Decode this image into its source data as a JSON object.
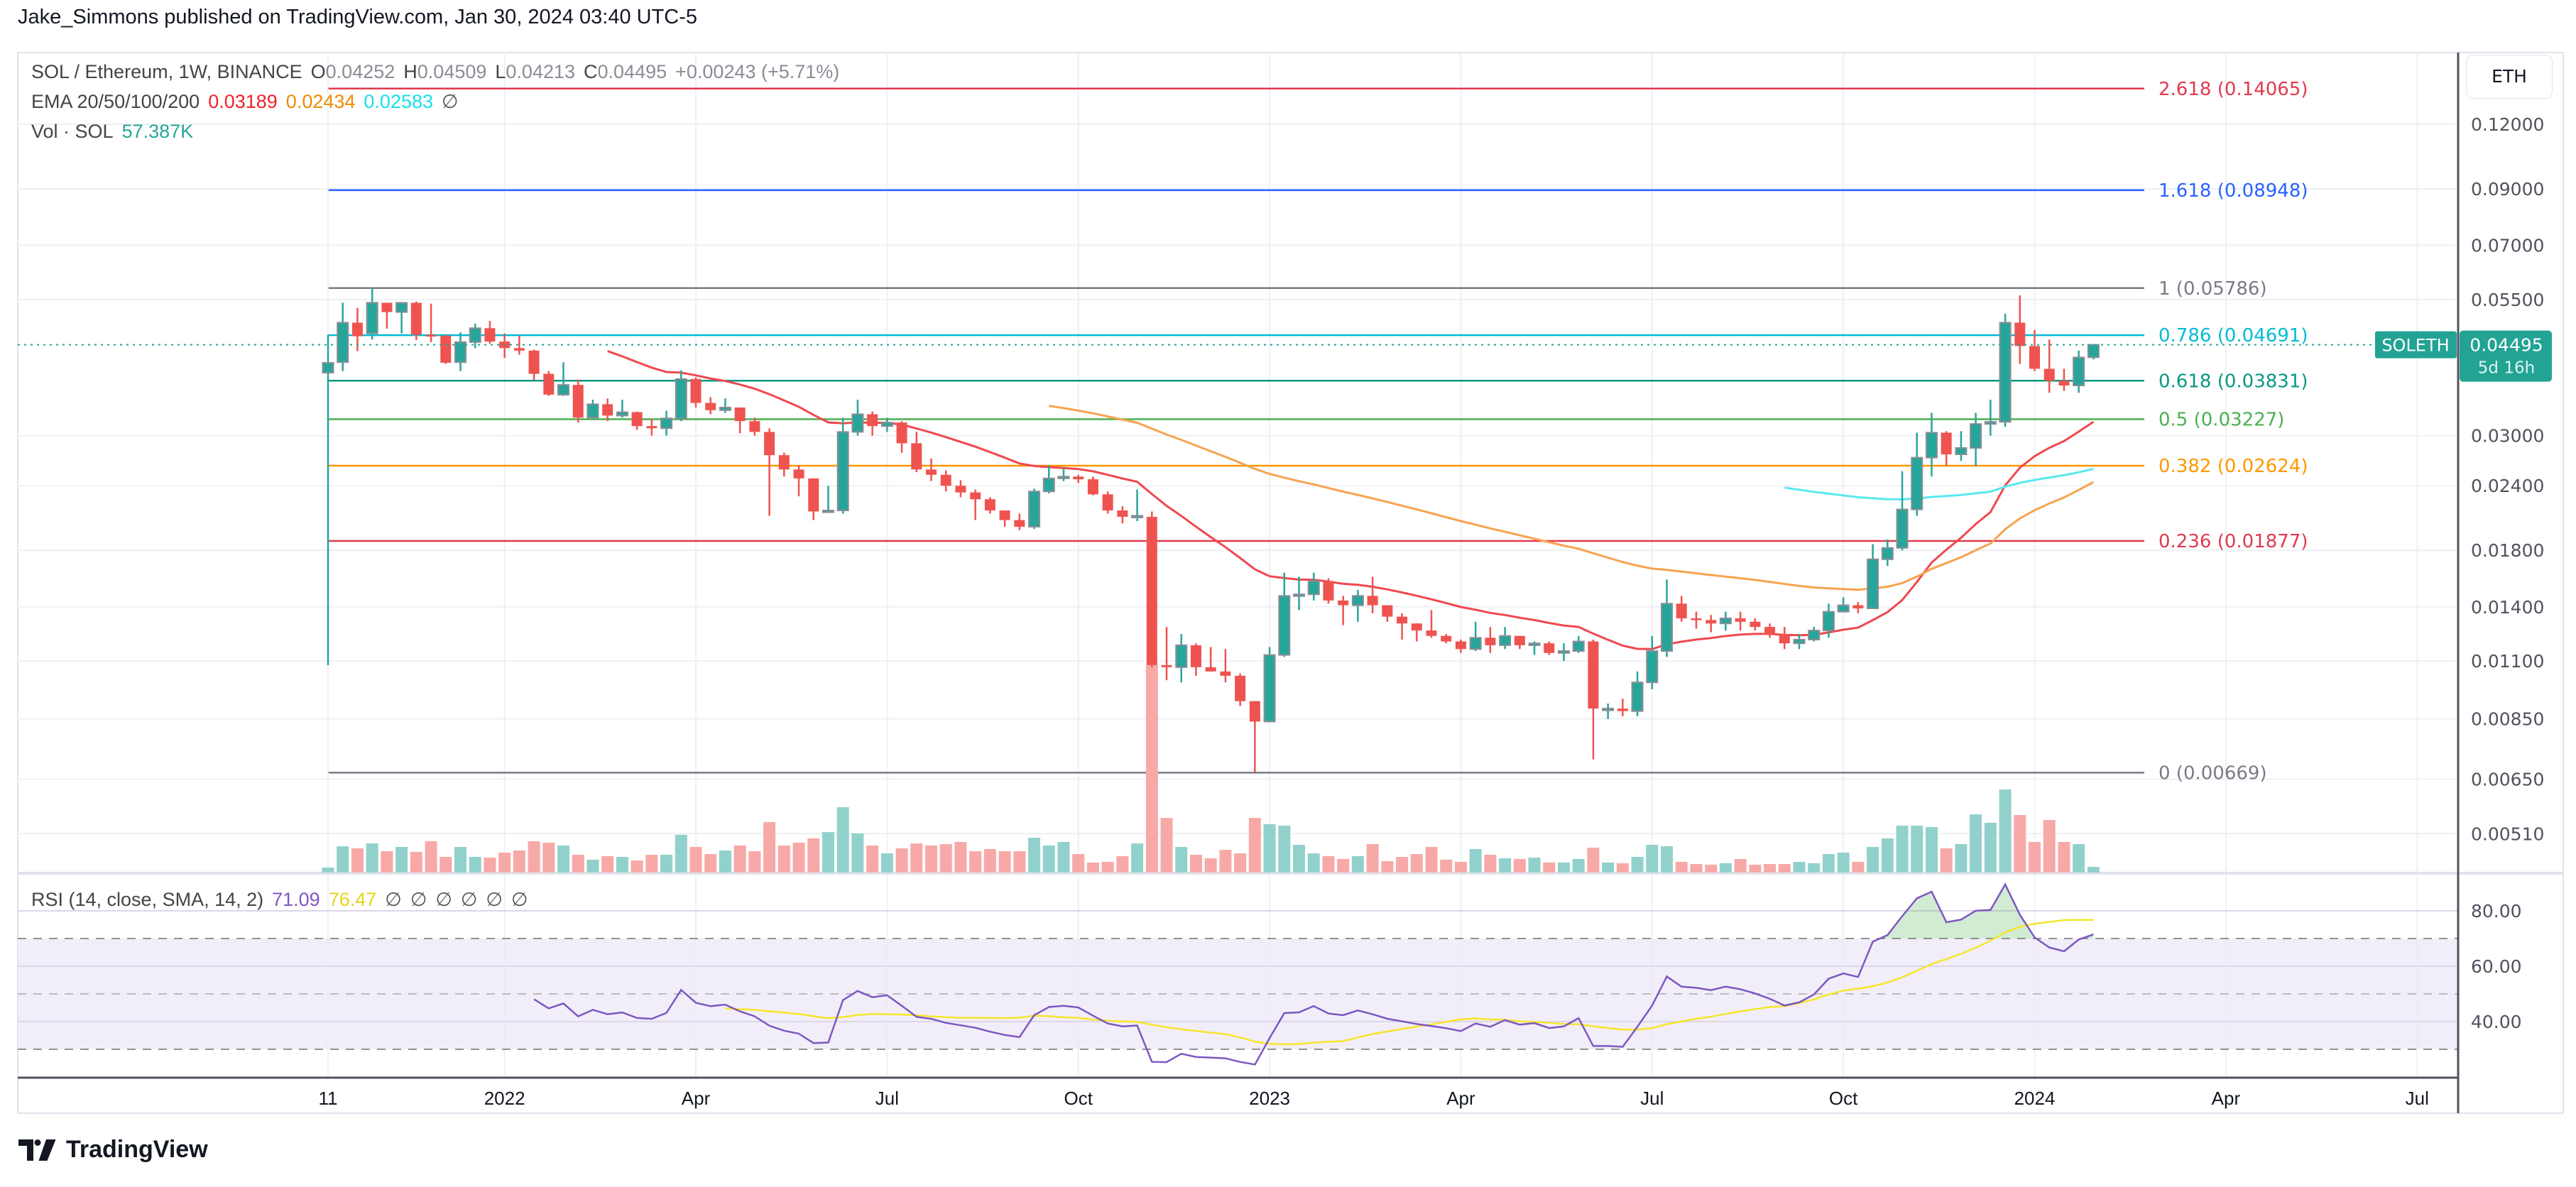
{
  "publisher_line": "Jake_Simmons published on TradingView.com, Jan 30, 2024 03:40 UTC-5",
  "legend": {
    "symbol": "SOL / Ethereum, 1W, BINANCE",
    "o_label": "O",
    "o_value": "0.04252",
    "h_label": "H",
    "h_value": "0.04509",
    "l_label": "L",
    "l_value": "0.04213",
    "c_label": "C",
    "c_value": "0.04495",
    "change": "+0.00243 (+5.71%)",
    "ema_label": "EMA 20/50/100/200",
    "ema20": "0.03189",
    "ema50": "0.02434",
    "ema100": "0.02583",
    "ema200": "∅",
    "vol_label": "Vol · SOL",
    "vol_value": "57.387K",
    "rsi_label": "RSI (14, close, SMA, 14, 2)",
    "rsi_value": "71.09",
    "rsi_sma_value": "76.47",
    "rsi_empty": [
      "∅",
      "∅",
      "∅",
      "∅",
      "∅",
      "∅"
    ]
  },
  "colors": {
    "up": "#26a69a",
    "down": "#ef5350",
    "vol_up": "#92d1cb",
    "vol_down": "#f7a9a7",
    "ema20": "#f0484f",
    "ema50": "#f7a350",
    "ema100": "#5ae8f0",
    "rsi": "#7e57c2",
    "rsi_sma": "#f5e62c",
    "rsi_band": "#ede7f6",
    "grid": "#eef0f4",
    "last_price": "#22a394"
  },
  "price_axis": {
    "currency_button": "ETH",
    "scale": "log",
    "ticks": [
      {
        "v": 0.12,
        "label": "0.12000"
      },
      {
        "v": 0.09,
        "label": "0.09000"
      },
      {
        "v": 0.07,
        "label": "0.07000"
      },
      {
        "v": 0.055,
        "label": "0.05500"
      },
      {
        "v": 0.03,
        "label": "0.03000"
      },
      {
        "v": 0.024,
        "label": "0.02400"
      },
      {
        "v": 0.018,
        "label": "0.01800"
      },
      {
        "v": 0.014,
        "label": "0.01400"
      },
      {
        "v": 0.011,
        "label": "0.01100"
      },
      {
        "v": 0.0085,
        "label": "0.00850"
      },
      {
        "v": 0.0065,
        "label": "0.00650"
      },
      {
        "v": 0.0051,
        "label": "0.00510"
      }
    ],
    "last_price": {
      "symbol": "SOLETH",
      "value": "0.04495",
      "countdown": "5d 16h"
    }
  },
  "rsi_axis": {
    "ticks": [
      {
        "v": 80,
        "label": "80.00"
      },
      {
        "v": 60,
        "label": "60.00"
      },
      {
        "v": 40,
        "label": "40.00"
      }
    ],
    "levels": [
      70,
      50,
      30
    ]
  },
  "time_axis": [
    {
      "label": "11",
      "date": "2021-10-11"
    },
    {
      "label": "2022",
      "date": "2022-01-03"
    },
    {
      "label": "Apr",
      "date": "2022-04-04"
    },
    {
      "label": "Jul",
      "date": "2022-07-04"
    },
    {
      "label": "Oct",
      "date": "2022-10-03"
    },
    {
      "label": "2023",
      "date": "2023-01-02"
    },
    {
      "label": "Apr",
      "date": "2023-04-03"
    },
    {
      "label": "Jul",
      "date": "2023-07-03"
    },
    {
      "label": "Oct",
      "date": "2023-10-02"
    },
    {
      "label": "2024",
      "date": "2024-01-01"
    },
    {
      "label": "Apr",
      "date": "2024-04-01"
    },
    {
      "label": "Jul",
      "date": "2024-07-01"
    }
  ],
  "fib_levels": [
    {
      "level": "2.618",
      "price": 0.14065,
      "label": "2.618 (0.14065)",
      "color": "#e03a4e"
    },
    {
      "level": "1.618",
      "price": 0.08948,
      "label": "1.618 (0.08948)",
      "color": "#2962ff"
    },
    {
      "level": "1",
      "price": 0.05786,
      "label": "1 (0.05786)",
      "color": "#787b86"
    },
    {
      "level": "0.786",
      "price": 0.04691,
      "label": "0.786 (0.04691)",
      "color": "#00bcd4"
    },
    {
      "level": "0.618",
      "price": 0.03831,
      "label": "0.618 (0.03831)",
      "color": "#089981"
    },
    {
      "level": "0.5",
      "price": 0.03227,
      "label": "0.5 (0.03227)",
      "color": "#4caf50"
    },
    {
      "level": "0.382",
      "price": 0.02624,
      "label": "0.382 (0.02624)",
      "color": "#ff9800"
    },
    {
      "level": "0.236",
      "price": 0.01877,
      "label": "0.236 (0.01877)",
      "color": "#e03a4e"
    },
    {
      "level": "0",
      "price": 0.00669,
      "label": "0 (0.00669)",
      "color": "#787b86"
    }
  ],
  "fib_range": {
    "from": "2021-10-18",
    "to": "2024-07-15"
  },
  "chart_data": {
    "type": "candlestick",
    "symbol": "SOLETH",
    "interval": "1W",
    "fields": [
      "date",
      "open",
      "high",
      "low",
      "close",
      "volume_k"
    ],
    "candles": [
      [
        "2021-10-11",
        0.0397,
        0.047,
        0.0108,
        0.0415,
        50
      ],
      [
        "2021-10-18",
        0.0416,
        0.0542,
        0.04,
        0.0496,
        266
      ],
      [
        "2021-10-25",
        0.0496,
        0.053,
        0.0437,
        0.0467,
        245
      ],
      [
        "2021-11-01",
        0.0473,
        0.058,
        0.046,
        0.0542,
        295
      ],
      [
        "2021-11-08",
        0.0542,
        0.0542,
        0.0483,
        0.052,
        216
      ],
      [
        "2021-11-15",
        0.052,
        0.0542,
        0.0473,
        0.0542,
        259
      ],
      [
        "2021-11-22",
        0.0542,
        0.0545,
        0.0459,
        0.047,
        209
      ],
      [
        "2021-11-29",
        0.047,
        0.054,
        0.0455,
        0.0468,
        317
      ],
      [
        "2021-12-06",
        0.0468,
        0.047,
        0.0413,
        0.0415,
        158
      ],
      [
        "2021-12-13",
        0.0416,
        0.0475,
        0.04,
        0.0455,
        259
      ],
      [
        "2021-12-20",
        0.0455,
        0.0494,
        0.0443,
        0.0484,
        158
      ],
      [
        "2021-12-27",
        0.0484,
        0.05,
        0.0452,
        0.0456,
        151
      ],
      [
        "2022-01-03",
        0.0456,
        0.0473,
        0.0424,
        0.0443,
        202
      ],
      [
        "2022-01-10",
        0.0443,
        0.0468,
        0.043,
        0.0438,
        223
      ],
      [
        "2022-01-17",
        0.0438,
        0.044,
        0.0384,
        0.0395,
        317
      ],
      [
        "2022-01-24",
        0.0395,
        0.04,
        0.0358,
        0.036,
        302
      ],
      [
        "2022-01-31",
        0.036,
        0.0416,
        0.0358,
        0.0376,
        274
      ],
      [
        "2022-02-07",
        0.0376,
        0.0385,
        0.0318,
        0.0325,
        180
      ],
      [
        "2022-02-14",
        0.0325,
        0.0352,
        0.0322,
        0.0345,
        130
      ],
      [
        "2022-02-21",
        0.0345,
        0.0354,
        0.032,
        0.0328,
        166
      ],
      [
        "2022-02-28",
        0.0328,
        0.0352,
        0.0325,
        0.0333,
        158
      ],
      [
        "2022-03-07",
        0.0333,
        0.0334,
        0.0308,
        0.0313,
        122
      ],
      [
        "2022-03-14",
        0.0313,
        0.0323,
        0.03,
        0.031,
        180
      ],
      [
        "2022-03-21",
        0.031,
        0.0335,
        0.03,
        0.0324,
        180
      ],
      [
        "2022-03-28",
        0.0324,
        0.0401,
        0.032,
        0.0386,
        382
      ],
      [
        "2022-04-04",
        0.0386,
        0.0389,
        0.034,
        0.0347,
        259
      ],
      [
        "2022-04-11",
        0.0347,
        0.0356,
        0.033,
        0.0336,
        187
      ],
      [
        "2022-04-18",
        0.0336,
        0.0354,
        0.0332,
        0.034,
        223
      ],
      [
        "2022-04-25",
        0.034,
        0.034,
        0.0303,
        0.032,
        274
      ],
      [
        "2022-05-02",
        0.032,
        0.0325,
        0.03,
        0.0305,
        216
      ],
      [
        "2022-05-09",
        0.0305,
        0.031,
        0.021,
        0.0275,
        511
      ],
      [
        "2022-05-16",
        0.0275,
        0.0278,
        0.025,
        0.0258,
        274
      ],
      [
        "2022-05-23",
        0.0258,
        0.0263,
        0.0229,
        0.0248,
        302
      ],
      [
        "2022-05-30",
        0.0248,
        0.0248,
        0.0206,
        0.0214,
        346
      ],
      [
        "2022-06-06",
        0.0214,
        0.024,
        0.0213,
        0.0215,
        410
      ],
      [
        "2022-06-13",
        0.0215,
        0.0325,
        0.0212,
        0.0305,
        662
      ],
      [
        "2022-06-20",
        0.0305,
        0.0352,
        0.03,
        0.033,
        396
      ],
      [
        "2022-06-27",
        0.033,
        0.0334,
        0.03,
        0.0313,
        274
      ],
      [
        "2022-07-04",
        0.0313,
        0.0325,
        0.0305,
        0.0318,
        194
      ],
      [
        "2022-07-11",
        0.0318,
        0.032,
        0.0278,
        0.029,
        245
      ],
      [
        "2022-07-18",
        0.029,
        0.0305,
        0.0255,
        0.0258,
        295
      ],
      [
        "2022-07-25",
        0.0258,
        0.0271,
        0.0245,
        0.0252,
        274
      ],
      [
        "2022-08-01",
        0.0252,
        0.0257,
        0.0234,
        0.024,
        288
      ],
      [
        "2022-08-08",
        0.024,
        0.0246,
        0.0228,
        0.0233,
        310
      ],
      [
        "2022-08-15",
        0.0233,
        0.0236,
        0.0206,
        0.0226,
        216
      ],
      [
        "2022-08-22",
        0.0226,
        0.0228,
        0.0212,
        0.0215,
        238
      ],
      [
        "2022-08-29",
        0.0215,
        0.0215,
        0.02,
        0.0206,
        216
      ],
      [
        "2022-09-05",
        0.0206,
        0.0212,
        0.0197,
        0.02,
        216
      ],
      [
        "2022-09-12",
        0.02,
        0.0237,
        0.0198,
        0.0234,
        353
      ],
      [
        "2022-09-19",
        0.0234,
        0.0263,
        0.0232,
        0.0248,
        274
      ],
      [
        "2022-09-26",
        0.0248,
        0.026,
        0.0245,
        0.025,
        310
      ],
      [
        "2022-10-03",
        0.025,
        0.0252,
        0.0243,
        0.0247,
        187
      ],
      [
        "2022-10-10",
        0.0247,
        0.025,
        0.023,
        0.0231,
        101
      ],
      [
        "2022-10-17",
        0.0231,
        0.0234,
        0.0212,
        0.0215,
        108
      ],
      [
        "2022-10-24",
        0.0215,
        0.0219,
        0.0203,
        0.0209,
        166
      ],
      [
        "2022-10-31",
        0.0209,
        0.0236,
        0.0205,
        0.021,
        295
      ],
      [
        "2022-11-07",
        0.0209,
        0.0214,
        0.0107,
        0.0108,
        2102
      ],
      [
        "2022-11-14",
        0.0108,
        0.0128,
        0.0101,
        0.0107,
        554
      ],
      [
        "2022-11-21",
        0.0107,
        0.0124,
        0.01,
        0.0118,
        259
      ],
      [
        "2022-11-28",
        0.0118,
        0.0119,
        0.0103,
        0.0107,
        180
      ],
      [
        "2022-12-05",
        0.0107,
        0.0117,
        0.0105,
        0.0105,
        144
      ],
      [
        "2022-12-12",
        0.0105,
        0.0116,
        0.01,
        0.0103,
        230
      ],
      [
        "2022-12-19",
        0.0103,
        0.0104,
        0.009,
        0.0092,
        194
      ],
      [
        "2022-12-26",
        0.0092,
        0.0092,
        0.0067,
        0.0084,
        554
      ],
      [
        "2023-01-02",
        0.0084,
        0.0117,
        0.0084,
        0.0113,
        490
      ],
      [
        "2023-01-09",
        0.0113,
        0.0163,
        0.0112,
        0.0147,
        475
      ],
      [
        "2023-01-16",
        0.0147,
        0.016,
        0.0138,
        0.0148,
        281
      ],
      [
        "2023-01-23",
        0.0148,
        0.0163,
        0.0144,
        0.0157,
        194
      ],
      [
        "2023-01-30",
        0.0157,
        0.0159,
        0.0142,
        0.0144,
        166
      ],
      [
        "2023-02-06",
        0.0144,
        0.0147,
        0.0129,
        0.0141,
        137
      ],
      [
        "2023-02-13",
        0.0141,
        0.0151,
        0.0131,
        0.0147,
        166
      ],
      [
        "2023-02-20",
        0.0147,
        0.016,
        0.0136,
        0.0141,
        288
      ],
      [
        "2023-02-27",
        0.0141,
        0.0141,
        0.0131,
        0.0134,
        115
      ],
      [
        "2023-03-06",
        0.0134,
        0.0136,
        0.0121,
        0.013,
        158
      ],
      [
        "2023-03-13",
        0.013,
        0.013,
        0.012,
        0.0126,
        187
      ],
      [
        "2023-03-20",
        0.0126,
        0.0138,
        0.0122,
        0.0123,
        259
      ],
      [
        "2023-03-27",
        0.0123,
        0.0124,
        0.0119,
        0.012,
        130
      ],
      [
        "2023-04-03",
        0.012,
        0.0121,
        0.0114,
        0.0116,
        108
      ],
      [
        "2023-04-10",
        0.0116,
        0.0131,
        0.0115,
        0.0122,
        238
      ],
      [
        "2023-04-17",
        0.0122,
        0.0128,
        0.0114,
        0.0118,
        180
      ],
      [
        "2023-04-24",
        0.0118,
        0.0128,
        0.0116,
        0.0123,
        144
      ],
      [
        "2023-05-01",
        0.0123,
        0.0123,
        0.0116,
        0.0118,
        137
      ],
      [
        "2023-05-08",
        0.0118,
        0.012,
        0.0113,
        0.0119,
        151
      ],
      [
        "2023-05-15",
        0.0119,
        0.012,
        0.0113,
        0.0114,
        101
      ],
      [
        "2023-05-22",
        0.0114,
        0.0119,
        0.011,
        0.0115,
        101
      ],
      [
        "2023-05-29",
        0.0115,
        0.0123,
        0.0114,
        0.012,
        137
      ],
      [
        "2023-06-05",
        0.012,
        0.0121,
        0.0071,
        0.0089,
        252
      ],
      [
        "2023-06-12",
        0.0089,
        0.0091,
        0.0085,
        0.0089,
        101
      ],
      [
        "2023-06-19",
        0.0089,
        0.0093,
        0.0086,
        0.0088,
        94
      ],
      [
        "2023-06-26",
        0.0088,
        0.0105,
        0.0086,
        0.01,
        158
      ],
      [
        "2023-07-03",
        0.01,
        0.0123,
        0.0097,
        0.0115,
        281
      ],
      [
        "2023-07-10",
        0.0115,
        0.0158,
        0.0112,
        0.0142,
        266
      ],
      [
        "2023-07-17",
        0.0142,
        0.0147,
        0.0131,
        0.0133,
        108
      ],
      [
        "2023-07-24",
        0.0133,
        0.0137,
        0.0127,
        0.0132,
        86
      ],
      [
        "2023-07-31",
        0.0132,
        0.0135,
        0.0125,
        0.013,
        79
      ],
      [
        "2023-08-07",
        0.013,
        0.0137,
        0.0126,
        0.0133,
        94
      ],
      [
        "2023-08-14",
        0.0133,
        0.0137,
        0.0126,
        0.0131,
        137
      ],
      [
        "2023-08-21",
        0.0131,
        0.0133,
        0.0126,
        0.0128,
        79
      ],
      [
        "2023-08-28",
        0.0128,
        0.013,
        0.0122,
        0.0124,
        86
      ],
      [
        "2023-09-04",
        0.0124,
        0.0128,
        0.0116,
        0.0119,
        86
      ],
      [
        "2023-09-11",
        0.0119,
        0.0124,
        0.0116,
        0.0121,
        108
      ],
      [
        "2023-09-18",
        0.0121,
        0.0128,
        0.012,
        0.0126,
        94
      ],
      [
        "2023-09-25",
        0.0126,
        0.0142,
        0.0122,
        0.0137,
        187
      ],
      [
        "2023-10-02",
        0.0137,
        0.0146,
        0.0137,
        0.0141,
        202
      ],
      [
        "2023-10-09",
        0.0141,
        0.0143,
        0.0136,
        0.0139,
        108
      ],
      [
        "2023-10-16",
        0.0139,
        0.0185,
        0.0139,
        0.0173,
        259
      ],
      [
        "2023-10-23",
        0.0173,
        0.0189,
        0.0168,
        0.0182,
        346
      ],
      [
        "2023-10-30",
        0.0182,
        0.0256,
        0.018,
        0.0216,
        475
      ],
      [
        "2023-11-06",
        0.0216,
        0.0304,
        0.021,
        0.0272,
        475
      ],
      [
        "2023-11-13",
        0.0272,
        0.0332,
        0.025,
        0.0304,
        461
      ],
      [
        "2023-11-20",
        0.0304,
        0.0306,
        0.0262,
        0.0276,
        245
      ],
      [
        "2023-11-27",
        0.0276,
        0.0306,
        0.0268,
        0.0284,
        288
      ],
      [
        "2023-12-04",
        0.0284,
        0.0332,
        0.0262,
        0.0316,
        590
      ],
      [
        "2023-12-11",
        0.0316,
        0.0352,
        0.03,
        0.0319,
        504
      ],
      [
        "2023-12-18",
        0.0319,
        0.0516,
        0.0312,
        0.0496,
        842
      ],
      [
        "2023-12-25",
        0.0496,
        0.056,
        0.0413,
        0.0447,
        583
      ],
      [
        "2024-01-01",
        0.0447,
        0.048,
        0.04,
        0.0404,
        310
      ],
      [
        "2024-01-08",
        0.0404,
        0.046,
        0.0363,
        0.0383,
        533
      ],
      [
        "2024-01-15",
        0.0383,
        0.0404,
        0.0366,
        0.0375,
        310
      ],
      [
        "2024-01-22",
        0.0375,
        0.0438,
        0.0363,
        0.0425,
        288
      ],
      [
        "2024-01-29",
        0.04252,
        0.04509,
        0.04213,
        0.04495,
        57.387
      ]
    ],
    "indicators": {
      "ema_lengths": [
        20,
        50,
        100,
        200
      ],
      "rsi": {
        "length": 14,
        "source": "close",
        "ma": "SMA",
        "ma_length": 14,
        "overbought": 70,
        "middle": 50,
        "oversold": 30
      }
    }
  }
}
